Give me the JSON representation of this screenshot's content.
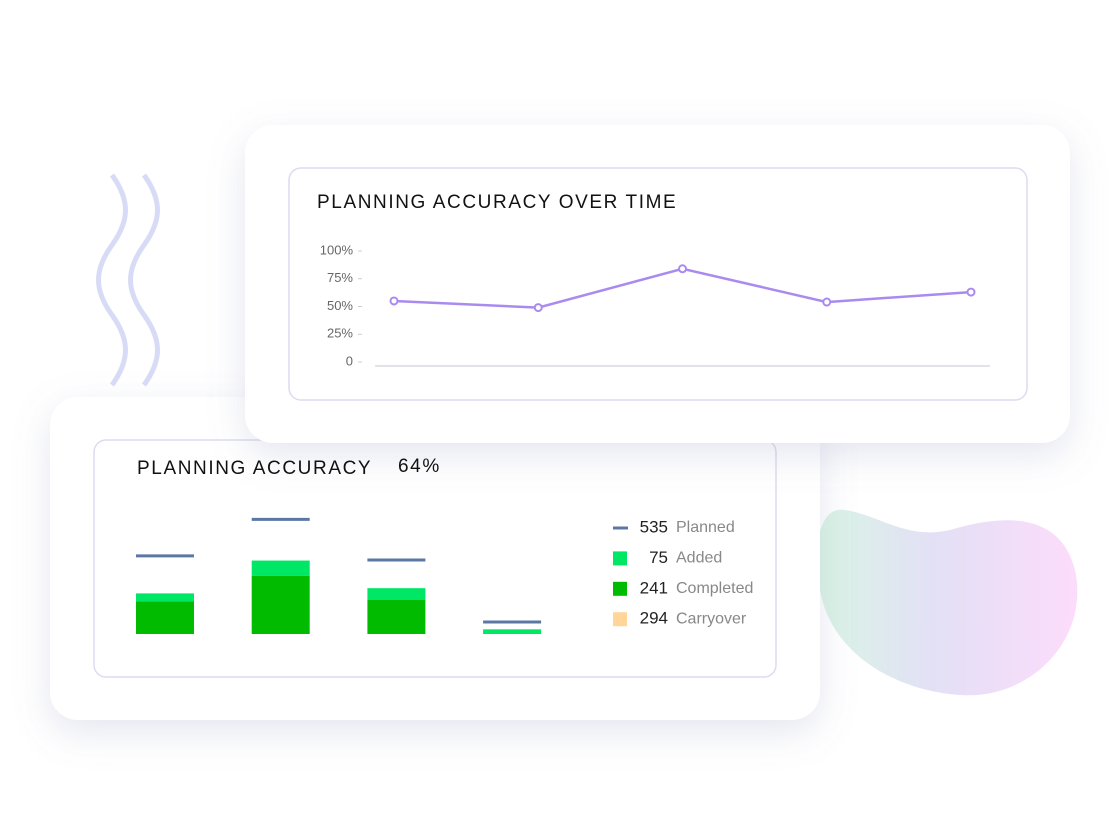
{
  "chart_data": [
    {
      "type": "line",
      "title": "PLANNING ACCURACY OVER TIME",
      "categories": [
        null,
        null,
        null,
        null,
        null
      ],
      "values": [
        55,
        49,
        84,
        54,
        63
      ],
      "color": "#a98bf0",
      "ylim": [
        0,
        100
      ],
      "yticks": [
        0,
        {
          "value": 25,
          "label": "25%"
        },
        {
          "value": 50,
          "label": "50%"
        },
        {
          "value": 75,
          "label": "75%"
        },
        {
          "value": 100,
          "label": "100%"
        }
      ]
    },
    {
      "type": "bar",
      "title": "PLANNING ACCURACY",
      "annotation": "64%",
      "stacked": true,
      "categories": [
        null,
        null,
        null,
        null
      ],
      "ylim": [
        0,
        240
      ],
      "series": [
        {
          "name": "Planned",
          "total": 535,
          "color": "#5b78a4",
          "mark": "line",
          "values": [
            150,
            220,
            142,
            23
          ]
        },
        {
          "name": "Added",
          "total": 75,
          "color": "#00e765",
          "mark": "bar",
          "values": [
            15,
            29,
            22,
            9
          ]
        },
        {
          "name": "Completed",
          "total": 241,
          "color": "#00bb00",
          "mark": "bar",
          "values": [
            63,
            112,
            66,
            0
          ]
        },
        {
          "name": "Carryover",
          "total": 294,
          "color": "#ffd59a",
          "mark": "bar",
          "values": [
            null,
            null,
            null,
            null
          ]
        }
      ]
    }
  ]
}
